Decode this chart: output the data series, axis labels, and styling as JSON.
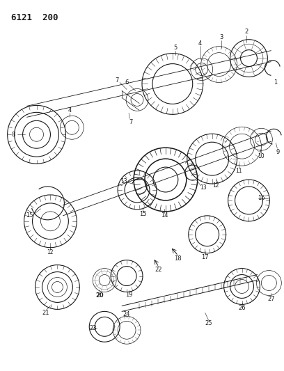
{
  "title": "6121  200",
  "background_color": "#ffffff",
  "line_color": "#1a1a1a",
  "figsize": [
    4.08,
    5.33
  ],
  "dpi": 100
}
